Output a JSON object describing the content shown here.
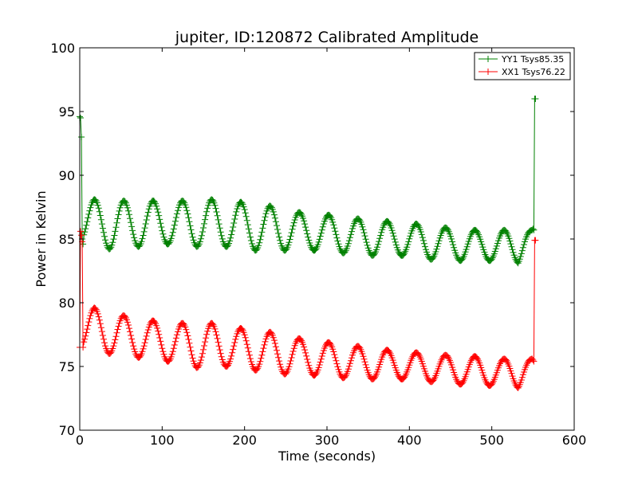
{
  "chart_data": {
    "type": "line",
    "title": "jupiter, ID:120872 Calibrated Amplitude",
    "xlabel": "Time (seconds)",
    "ylabel": "Power in Kelvin",
    "xlim": [
      0,
      600
    ],
    "ylim": [
      70,
      100
    ],
    "xticks": [
      "0",
      "100",
      "200",
      "300",
      "400",
      "500",
      "600"
    ],
    "yticks": [
      "70",
      "75",
      "80",
      "85",
      "90",
      "95",
      "100"
    ],
    "grid": false,
    "legend_position": "top-right",
    "marker": "+",
    "series": [
      {
        "name": "YY1 Tsys85.35",
        "color": "#008000",
        "start_points": [
          [
            0,
            94.6
          ],
          [
            1,
            94.5
          ],
          [
            2,
            93.0
          ],
          [
            3,
            85.0
          ],
          [
            4,
            84.6
          ]
        ],
        "end_points": [
          [
            550,
            85.8
          ],
          [
            551,
            85.7
          ],
          [
            552,
            96.0
          ],
          [
            553,
            96.0
          ]
        ],
        "oscillation": {
          "t_start": 5,
          "t_end": 549,
          "period_s": 35.5,
          "phase_s": 18,
          "step_s": 1,
          "peaks": [
            [
              18,
              88.1
            ],
            [
              53,
              88.0
            ],
            [
              88,
              88.0
            ],
            [
              124,
              88.0
            ],
            [
              160,
              88.1
            ],
            [
              195,
              87.9
            ],
            [
              231,
              87.6
            ],
            [
              266,
              87.1
            ],
            [
              301,
              86.9
            ],
            [
              337,
              86.6
            ],
            [
              372,
              86.4
            ],
            [
              407,
              86.2
            ],
            [
              443,
              85.9
            ],
            [
              479,
              85.7
            ],
            [
              514,
              85.7
            ]
          ],
          "troughs": [
            [
              4,
              84.8
            ],
            [
              36,
              84.2
            ],
            [
              71,
              84.4
            ],
            [
              106,
              84.6
            ],
            [
              142,
              84.4
            ],
            [
              177,
              84.4
            ],
            [
              213,
              84.1
            ],
            [
              248,
              84.1
            ],
            [
              284,
              84.1
            ],
            [
              319,
              83.9
            ],
            [
              355,
              83.7
            ],
            [
              390,
              83.7
            ],
            [
              425,
              83.4
            ],
            [
              461,
              83.3
            ],
            [
              496,
              83.3
            ],
            [
              532,
              83.1
            ],
            [
              549,
              85.6
            ]
          ]
        }
      },
      {
        "name": "XX1 Tsys76.22",
        "color": "#ff0000",
        "start_points": [
          [
            0,
            76.5
          ],
          [
            1,
            85.6
          ],
          [
            2,
            85.3
          ],
          [
            3,
            84.8
          ],
          [
            4,
            76.5
          ]
        ],
        "end_points": [
          [
            550,
            75.5
          ],
          [
            551,
            75.4
          ],
          [
            552,
            84.9
          ],
          [
            553,
            84.9
          ]
        ],
        "oscillation": {
          "t_start": 5,
          "t_end": 549,
          "period_s": 35.5,
          "phase_s": 18,
          "step_s": 1,
          "peaks": [
            [
              18,
              79.6
            ],
            [
              53,
              79.0
            ],
            [
              88,
              78.6
            ],
            [
              124,
              78.4
            ],
            [
              160,
              78.4
            ],
            [
              195,
              78.0
            ],
            [
              231,
              77.7
            ],
            [
              266,
              77.2
            ],
            [
              301,
              76.9
            ],
            [
              337,
              76.6
            ],
            [
              372,
              76.3
            ],
            [
              407,
              76.1
            ],
            [
              443,
              75.9
            ],
            [
              479,
              75.8
            ],
            [
              514,
              75.6
            ]
          ],
          "troughs": [
            [
              4,
              76.4
            ],
            [
              36,
              76.0
            ],
            [
              71,
              75.7
            ],
            [
              106,
              75.4
            ],
            [
              142,
              74.9
            ],
            [
              177,
              75.0
            ],
            [
              213,
              74.7
            ],
            [
              248,
              74.4
            ],
            [
              284,
              74.3
            ],
            [
              319,
              74.1
            ],
            [
              355,
              74.0
            ],
            [
              390,
              74.0
            ],
            [
              425,
              73.8
            ],
            [
              461,
              73.6
            ],
            [
              496,
              73.5
            ],
            [
              532,
              73.3
            ],
            [
              549,
              75.4
            ]
          ]
        }
      }
    ]
  }
}
